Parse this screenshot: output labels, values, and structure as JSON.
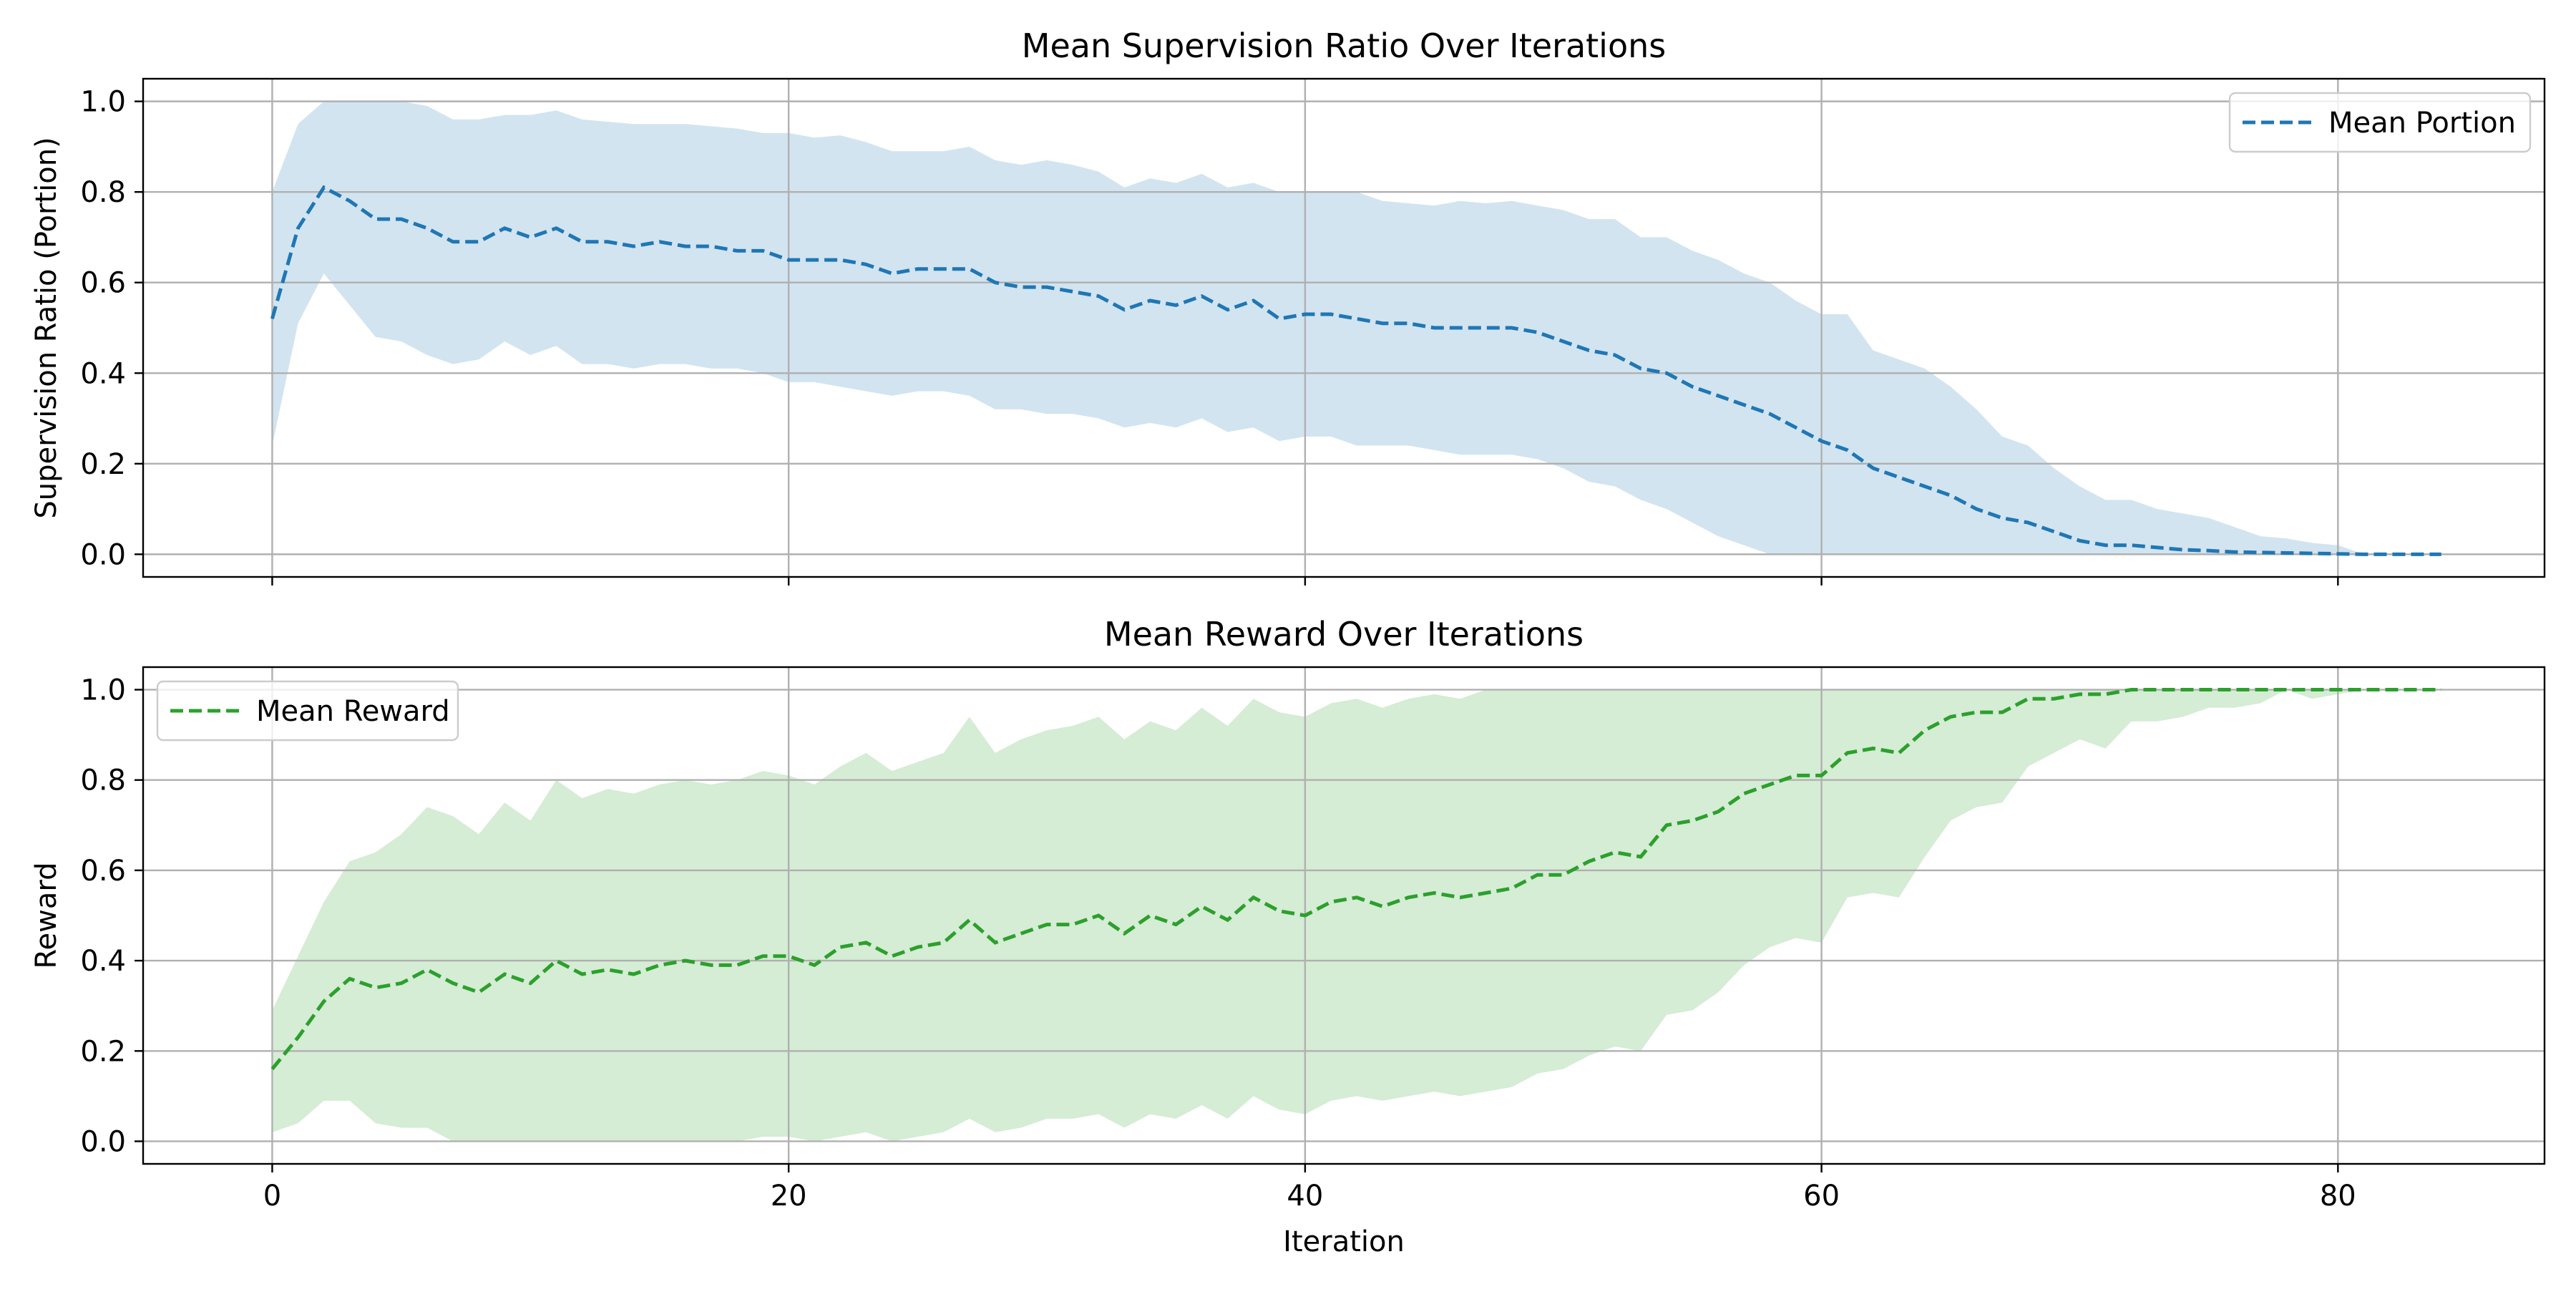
{
  "chart_data": [
    {
      "type": "line",
      "title": "Mean Supervision Ratio Over Iterations",
      "xlabel": "",
      "ylabel": "Supervision Ratio (Portion)",
      "xlim": [
        -5,
        88
      ],
      "ylim": [
        -0.05,
        1.05
      ],
      "xticks": [
        0,
        20,
        40,
        60,
        80
      ],
      "yticks": [
        0.0,
        0.2,
        0.4,
        0.6,
        0.8,
        1.0
      ],
      "show_xtick_labels": false,
      "grid": true,
      "legend_position": "top-right",
      "colors": {
        "line": "#1f77b4",
        "band": "#1f77b4"
      },
      "x": [
        0,
        1,
        2,
        3,
        4,
        5,
        6,
        7,
        8,
        9,
        10,
        11,
        12,
        13,
        14,
        15,
        16,
        17,
        18,
        19,
        20,
        21,
        22,
        23,
        24,
        25,
        26,
        27,
        28,
        29,
        30,
        31,
        32,
        33,
        34,
        35,
        36,
        37,
        38,
        39,
        40,
        41,
        42,
        43,
        44,
        45,
        46,
        47,
        48,
        49,
        50,
        51,
        52,
        53,
        54,
        55,
        56,
        57,
        58,
        59,
        60,
        61,
        62,
        63,
        64,
        65,
        66,
        67,
        68,
        69,
        70,
        71,
        72,
        73,
        74,
        75,
        76,
        77,
        78,
        79,
        80,
        81,
        82,
        83,
        84
      ],
      "series": [
        {
          "name": "Mean Portion",
          "style": "dashed",
          "values": [
            0.52,
            0.72,
            0.81,
            0.78,
            0.74,
            0.74,
            0.72,
            0.69,
            0.69,
            0.72,
            0.7,
            0.72,
            0.69,
            0.69,
            0.68,
            0.69,
            0.68,
            0.68,
            0.67,
            0.67,
            0.65,
            0.65,
            0.65,
            0.64,
            0.62,
            0.63,
            0.63,
            0.63,
            0.6,
            0.59,
            0.59,
            0.58,
            0.57,
            0.54,
            0.56,
            0.55,
            0.57,
            0.54,
            0.56,
            0.52,
            0.53,
            0.53,
            0.52,
            0.51,
            0.51,
            0.5,
            0.5,
            0.5,
            0.5,
            0.49,
            0.47,
            0.45,
            0.44,
            0.41,
            0.4,
            0.37,
            0.35,
            0.33,
            0.31,
            0.28,
            0.25,
            0.23,
            0.19,
            0.17,
            0.15,
            0.13,
            0.1,
            0.08,
            0.07,
            0.05,
            0.03,
            0.02,
            0.02,
            0.015,
            0.01,
            0.008,
            0.005,
            0.004,
            0.003,
            0.002,
            0.001,
            0.0,
            0.0,
            0.0,
            0.0
          ],
          "band_upper": [
            0.8,
            0.95,
            1.0,
            1.0,
            1.0,
            1.0,
            0.99,
            0.96,
            0.96,
            0.97,
            0.97,
            0.98,
            0.96,
            0.955,
            0.95,
            0.95,
            0.95,
            0.945,
            0.94,
            0.93,
            0.93,
            0.92,
            0.925,
            0.91,
            0.89,
            0.89,
            0.89,
            0.9,
            0.87,
            0.86,
            0.87,
            0.86,
            0.845,
            0.81,
            0.83,
            0.82,
            0.84,
            0.81,
            0.82,
            0.8,
            0.8,
            0.8,
            0.8,
            0.78,
            0.775,
            0.77,
            0.78,
            0.775,
            0.78,
            0.77,
            0.76,
            0.74,
            0.74,
            0.7,
            0.7,
            0.67,
            0.65,
            0.62,
            0.6,
            0.56,
            0.53,
            0.53,
            0.45,
            0.43,
            0.41,
            0.37,
            0.32,
            0.26,
            0.24,
            0.19,
            0.15,
            0.12,
            0.12,
            0.1,
            0.09,
            0.08,
            0.06,
            0.04,
            0.035,
            0.025,
            0.02,
            0.0,
            0.0,
            0.0,
            0.0
          ],
          "band_lower": [
            0.24,
            0.51,
            0.62,
            0.55,
            0.48,
            0.47,
            0.44,
            0.42,
            0.43,
            0.47,
            0.44,
            0.46,
            0.42,
            0.42,
            0.41,
            0.42,
            0.42,
            0.41,
            0.41,
            0.4,
            0.38,
            0.38,
            0.37,
            0.36,
            0.35,
            0.36,
            0.36,
            0.35,
            0.32,
            0.32,
            0.31,
            0.31,
            0.3,
            0.28,
            0.29,
            0.28,
            0.3,
            0.27,
            0.28,
            0.25,
            0.26,
            0.26,
            0.24,
            0.24,
            0.24,
            0.23,
            0.22,
            0.22,
            0.22,
            0.21,
            0.19,
            0.16,
            0.15,
            0.12,
            0.1,
            0.07,
            0.04,
            0.02,
            0.0,
            0.0,
            0.0,
            0.0,
            0.0,
            0.0,
            0.0,
            0.0,
            0.0,
            0.0,
            0.0,
            0.0,
            0.0,
            0.0,
            0.0,
            0.0,
            0.0,
            0.0,
            0.0,
            0.0,
            0.0,
            0.0,
            0.0,
            0.0,
            0.0,
            0.0,
            0.0
          ]
        }
      ]
    },
    {
      "type": "line",
      "title": "Mean Reward Over Iterations",
      "xlabel": "Iteration",
      "ylabel": "Reward",
      "xlim": [
        -5,
        88
      ],
      "ylim": [
        -0.05,
        1.05
      ],
      "xticks": [
        0,
        20,
        40,
        60,
        80
      ],
      "yticks": [
        0.0,
        0.2,
        0.4,
        0.6,
        0.8,
        1.0
      ],
      "show_xtick_labels": true,
      "grid": true,
      "legend_position": "top-left",
      "colors": {
        "line": "#2ca02c",
        "band": "#2ca02c"
      },
      "x": [
        0,
        1,
        2,
        3,
        4,
        5,
        6,
        7,
        8,
        9,
        10,
        11,
        12,
        13,
        14,
        15,
        16,
        17,
        18,
        19,
        20,
        21,
        22,
        23,
        24,
        25,
        26,
        27,
        28,
        29,
        30,
        31,
        32,
        33,
        34,
        35,
        36,
        37,
        38,
        39,
        40,
        41,
        42,
        43,
        44,
        45,
        46,
        47,
        48,
        49,
        50,
        51,
        52,
        53,
        54,
        55,
        56,
        57,
        58,
        59,
        60,
        61,
        62,
        63,
        64,
        65,
        66,
        67,
        68,
        69,
        70,
        71,
        72,
        73,
        74,
        75,
        76,
        77,
        78,
        79,
        80,
        81,
        82,
        83,
        84
      ],
      "series": [
        {
          "name": "Mean Reward",
          "style": "dashed",
          "values": [
            0.16,
            0.23,
            0.31,
            0.36,
            0.34,
            0.35,
            0.38,
            0.35,
            0.33,
            0.37,
            0.35,
            0.4,
            0.37,
            0.38,
            0.37,
            0.39,
            0.4,
            0.39,
            0.39,
            0.41,
            0.41,
            0.39,
            0.43,
            0.44,
            0.41,
            0.43,
            0.44,
            0.49,
            0.44,
            0.46,
            0.48,
            0.48,
            0.5,
            0.46,
            0.5,
            0.48,
            0.52,
            0.49,
            0.54,
            0.51,
            0.5,
            0.53,
            0.54,
            0.52,
            0.54,
            0.55,
            0.54,
            0.55,
            0.56,
            0.59,
            0.59,
            0.62,
            0.64,
            0.63,
            0.7,
            0.71,
            0.73,
            0.77,
            0.79,
            0.81,
            0.81,
            0.86,
            0.87,
            0.86,
            0.91,
            0.94,
            0.95,
            0.95,
            0.98,
            0.98,
            0.99,
            0.99,
            1.0,
            1.0,
            1.0,
            1.0,
            1.0,
            1.0,
            1.0,
            1.0,
            1.0,
            1.0,
            1.0,
            1.0,
            1.0
          ],
          "band_upper": [
            0.29,
            0.41,
            0.53,
            0.62,
            0.64,
            0.68,
            0.74,
            0.72,
            0.68,
            0.75,
            0.71,
            0.8,
            0.76,
            0.78,
            0.77,
            0.79,
            0.8,
            0.79,
            0.8,
            0.82,
            0.81,
            0.79,
            0.83,
            0.86,
            0.82,
            0.84,
            0.86,
            0.94,
            0.86,
            0.89,
            0.91,
            0.92,
            0.94,
            0.89,
            0.93,
            0.91,
            0.96,
            0.92,
            0.98,
            0.95,
            0.94,
            0.97,
            0.98,
            0.96,
            0.98,
            0.99,
            0.98,
            1.0,
            1.0,
            1.0,
            1.0,
            1.0,
            1.0,
            1.0,
            1.0,
            1.0,
            1.0,
            1.0,
            1.0,
            1.0,
            1.0,
            1.0,
            1.0,
            1.0,
            1.0,
            1.0,
            1.0,
            1.0,
            1.0,
            1.0,
            1.0,
            1.0,
            1.0,
            1.0,
            1.0,
            1.0,
            1.0,
            1.0,
            1.0,
            1.0,
            1.0,
            1.0,
            1.0,
            1.0,
            1.0
          ],
          "band_lower": [
            0.02,
            0.04,
            0.09,
            0.09,
            0.04,
            0.03,
            0.03,
            0.0,
            0.0,
            0.0,
            0.0,
            0.0,
            0.0,
            0.0,
            0.0,
            0.0,
            0.0,
            0.0,
            0.0,
            0.01,
            0.01,
            0.0,
            0.01,
            0.02,
            0.0,
            0.01,
            0.02,
            0.05,
            0.02,
            0.03,
            0.05,
            0.05,
            0.06,
            0.03,
            0.06,
            0.05,
            0.08,
            0.05,
            0.1,
            0.07,
            0.06,
            0.09,
            0.1,
            0.09,
            0.1,
            0.11,
            0.1,
            0.11,
            0.12,
            0.15,
            0.16,
            0.19,
            0.21,
            0.2,
            0.28,
            0.29,
            0.33,
            0.39,
            0.43,
            0.45,
            0.44,
            0.54,
            0.55,
            0.54,
            0.63,
            0.71,
            0.74,
            0.75,
            0.83,
            0.86,
            0.89,
            0.87,
            0.93,
            0.93,
            0.94,
            0.96,
            0.96,
            0.97,
            1.0,
            0.98,
            0.99,
            1.0,
            1.0,
            1.0,
            1.0
          ]
        }
      ]
    }
  ]
}
